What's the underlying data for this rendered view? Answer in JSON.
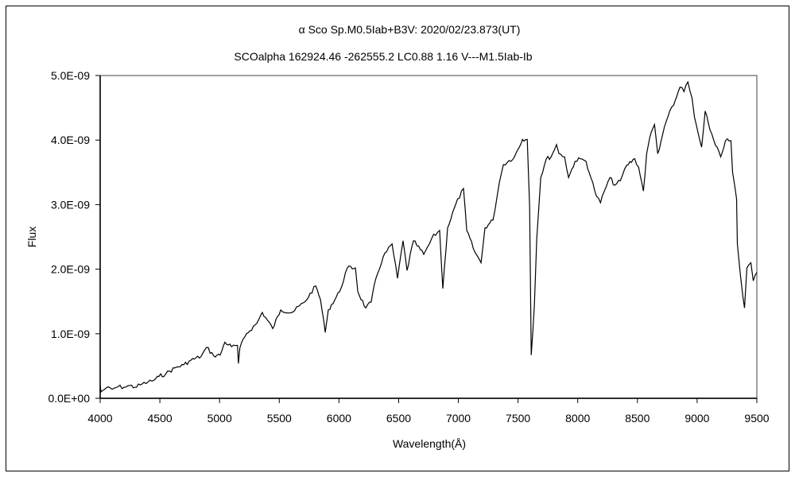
{
  "chart_data": {
    "type": "line",
    "title": "α Sco    Sp.M0.5Iab+B3V:    2020/02/23.873(UT)",
    "subtitle": "SCOalpha 162924.46 -262555.2 LC0.88 1.16 V---M1.5Iab-Ib",
    "xlabel": "Wavelength(Å)",
    "ylabel": "Flux",
    "xlim": [
      4000,
      9500
    ],
    "ylim": [
      0,
      5e-09
    ],
    "x_ticks": [
      4000,
      4500,
      5000,
      5500,
      6000,
      6500,
      7000,
      7500,
      8000,
      8500,
      9000,
      9500
    ],
    "x_tick_labels": [
      "4000",
      "4500",
      "5000",
      "5500",
      "6000",
      "6500",
      "7000",
      "7500",
      "8000",
      "8500",
      "9000",
      "9500"
    ],
    "y_ticks": [
      0,
      1e-09,
      2e-09,
      3e-09,
      4e-09,
      5e-09
    ],
    "y_tick_labels": [
      "0.0E+00",
      "1.0E-09",
      "2.0E-09",
      "3.0E-09",
      "4.0E-09",
      "5.0E-09"
    ],
    "grid": false,
    "legend": "none",
    "y_unit_scale": 1e-09,
    "series": [
      {
        "name": "Flux",
        "color": "#000000",
        "x": [
          4000,
          4007,
          4050,
          4100,
          4150,
          4200,
          4250,
          4290,
          4350,
          4400,
          4450,
          4493,
          4550,
          4626,
          4700,
          4760,
          4846,
          4892,
          4950,
          5005,
          5045,
          5100,
          5150,
          5158,
          5170,
          5225,
          5312,
          5358,
          5445,
          5512,
          5605,
          5712,
          5805,
          5845,
          5885,
          5911,
          6005,
          6070,
          6138,
          6158,
          6225,
          6270,
          6310,
          6370,
          6445,
          6490,
          6537,
          6570,
          6624,
          6710,
          6757,
          6777,
          6843,
          6870,
          6910,
          6977,
          7043,
          7070,
          7137,
          7190,
          7223,
          7290,
          7343,
          7377,
          7470,
          7537,
          7577,
          7597,
          7610,
          7637,
          7657,
          7690,
          7737,
          7777,
          7822,
          7843,
          7890,
          7923,
          7977,
          8023,
          8070,
          8110,
          8157,
          8190,
          8223,
          8270,
          8310,
          8357,
          8410,
          8477,
          8510,
          8550,
          8577,
          8603,
          8643,
          8670,
          8710,
          8770,
          8803,
          8857,
          8890,
          8923,
          8957,
          8977,
          9023,
          9037,
          9067,
          9107,
          9153,
          9197,
          9237,
          9283,
          9297,
          9330,
          9337,
          9363,
          9383,
          9397,
          9417,
          9450,
          9470,
          9500
        ],
        "y": [
          0.2,
          0.1,
          0.16,
          0.14,
          0.18,
          0.17,
          0.2,
          0.17,
          0.22,
          0.25,
          0.28,
          0.34,
          0.38,
          0.47,
          0.52,
          0.59,
          0.65,
          0.79,
          0.66,
          0.67,
          0.87,
          0.8,
          0.82,
          0.54,
          0.78,
          1.0,
          1.16,
          1.33,
          1.08,
          1.37,
          1.33,
          1.49,
          1.74,
          1.53,
          1.02,
          1.37,
          1.65,
          2.02,
          2.02,
          1.65,
          1.4,
          1.49,
          1.86,
          2.19,
          2.39,
          1.86,
          2.44,
          1.98,
          2.44,
          2.23,
          2.39,
          2.48,
          2.6,
          1.7,
          2.64,
          3.0,
          3.25,
          2.6,
          2.27,
          2.1,
          2.64,
          2.76,
          3.34,
          3.62,
          3.74,
          4.01,
          4.01,
          2.97,
          0.67,
          1.45,
          2.48,
          3.42,
          3.71,
          3.74,
          3.93,
          3.79,
          3.74,
          3.42,
          3.67,
          3.71,
          3.67,
          3.42,
          3.13,
          3.03,
          3.21,
          3.42,
          3.3,
          3.37,
          3.61,
          3.71,
          3.58,
          3.21,
          3.79,
          4.04,
          4.24,
          3.79,
          4.08,
          4.45,
          4.54,
          4.82,
          4.75,
          4.9,
          4.65,
          4.36,
          3.99,
          3.89,
          4.45,
          4.16,
          3.92,
          3.74,
          3.99,
          3.99,
          3.5,
          3.09,
          2.39,
          1.9,
          1.58,
          1.4,
          2.02,
          2.1,
          1.82,
          1.95
        ]
      }
    ]
  }
}
